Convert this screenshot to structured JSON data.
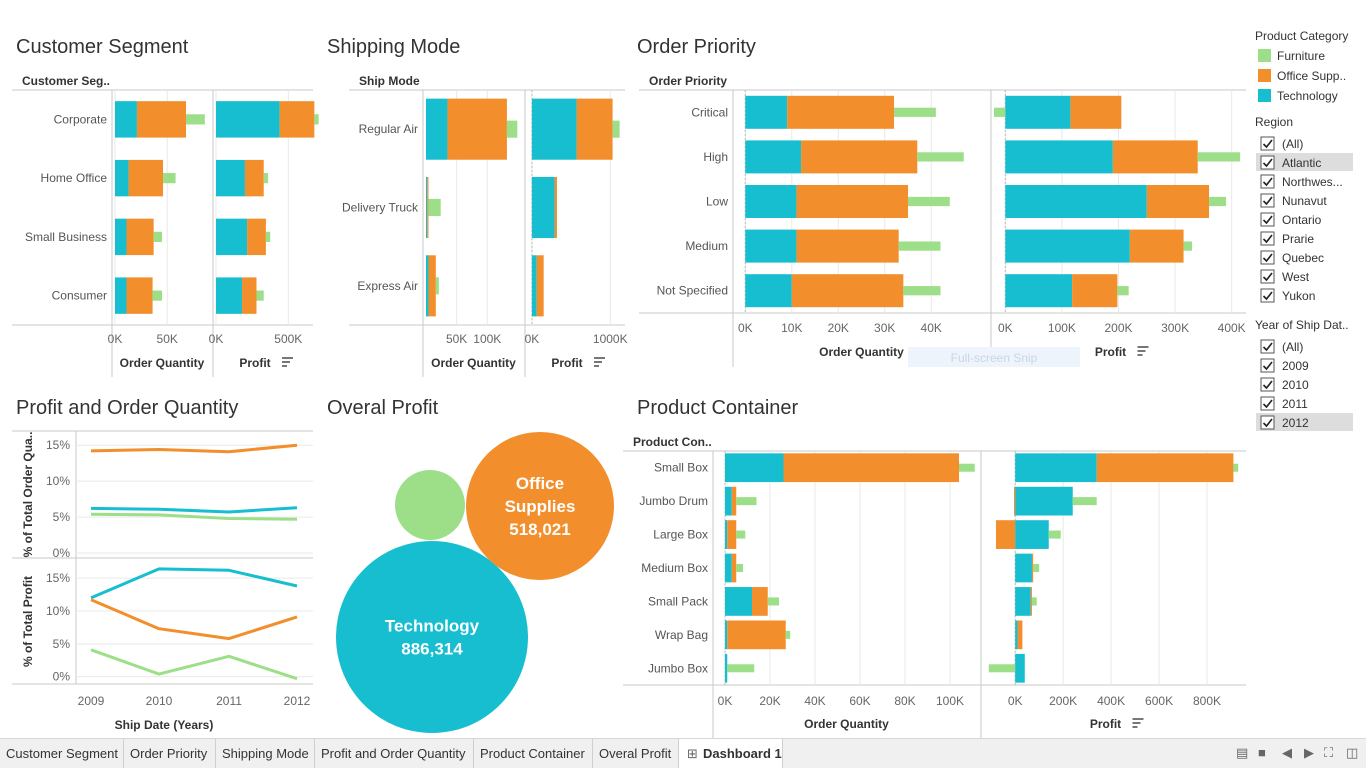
{
  "colors": {
    "Furniture": "#9ddf88",
    "Office Supplies": "#f28e2b",
    "Technology": "#17becf"
  },
  "titles": {
    "customer_segment": "Customer Segment",
    "shipping_mode": "Shipping Mode",
    "order_priority": "Order Priority",
    "profit_order_qty": "Profit and Order Quantity",
    "overal_profit": "Overal Profit",
    "product_container": "Product Container"
  },
  "legend": {
    "category_title": "Product Category",
    "categories": [
      "Furniture",
      "Office Supp..",
      "Technology"
    ],
    "region_title": "Region",
    "regions": [
      "(All)",
      "Atlantic",
      "Northwes...",
      "Nunavut",
      "Ontario",
      "Prarie",
      "Quebec",
      "West",
      "Yukon"
    ],
    "year_title": "Year of Ship Dat..",
    "years": [
      "(All)",
      "2009",
      "2010",
      "2011",
      "2012"
    ]
  },
  "watermark": "Full-screen Snip",
  "tabs": [
    "Customer Segment",
    "Order Priority",
    "Shipping Mode",
    "Profit and Order Quantity",
    "Product Container",
    "Overal Profit",
    "Dashboard 1"
  ],
  "chart_data": [
    {
      "type": "bar",
      "id": "segment",
      "title": "Customer Segment",
      "row_header": "Customer Seg..",
      "categories": [
        "Corporate",
        "Home Office",
        "Small Business",
        "Consumer"
      ],
      "panes": [
        {
          "axis_title": "Order Quantity",
          "ticks": [
            {
              "v": 0,
              "label": "0K"
            },
            {
              "v": 50000,
              "label": "50K"
            }
          ],
          "xlim": [
            0,
            90000
          ],
          "series": [
            {
              "name": "Technology",
              "values": [
                21000,
                13000,
                11000,
                11000
              ]
            },
            {
              "name": "Office Supplies",
              "values": [
                47000,
                33000,
                26000,
                25000
              ]
            },
            {
              "name": "Furniture",
              "values": [
                18000,
                12000,
                8000,
                9000
              ]
            }
          ]
        },
        {
          "axis_title": "Profit",
          "ticks": [
            {
              "v": 0,
              "label": "0K"
            },
            {
              "v": 500000,
              "label": "500K"
            }
          ],
          "xlim": [
            0,
            650000
          ],
          "series": [
            {
              "name": "Technology",
              "values": [
                440000,
                200000,
                215000,
                180000
              ]
            },
            {
              "name": "Office Supplies",
              "values": [
                240000,
                130000,
                130000,
                100000
              ]
            },
            {
              "name": "Furniture",
              "values": [
                30000,
                30000,
                30000,
                50000
              ]
            }
          ]
        }
      ]
    },
    {
      "type": "bar",
      "id": "shipmode",
      "title": "Shipping Mode",
      "row_header": "Ship Mode",
      "categories": [
        "Regular Air",
        "Delivery Truck",
        "Express Air"
      ],
      "panes": [
        {
          "axis_title": "Order Quantity",
          "ticks": [
            {
              "v": 50000,
              "label": "50K"
            },
            {
              "v": 100000,
              "label": "100K"
            }
          ],
          "xlim": [
            0,
            155000
          ],
          "series": [
            {
              "name": "Technology",
              "values": [
                35000,
                2000,
                4000
              ]
            },
            {
              "name": "Office Supplies",
              "values": [
                97000,
                2000,
                12000
              ]
            },
            {
              "name": "Furniture",
              "values": [
                17000,
                20000,
                5000
              ]
            }
          ]
        },
        {
          "axis_title": "Profit",
          "ticks": [
            {
              "v": 0,
              "label": "0K"
            },
            {
              "v": 1000000,
              "label": "1000K"
            }
          ],
          "xlim": [
            -50000,
            1150000
          ],
          "series": [
            {
              "name": "Technology",
              "values": [
                570000,
                290000,
                60000
              ]
            },
            {
              "name": "Office Supplies",
              "values": [
                460000,
                30000,
                90000
              ]
            },
            {
              "name": "Furniture",
              "values": [
                90000,
                0,
                0
              ]
            }
          ]
        }
      ]
    },
    {
      "type": "bar",
      "id": "priority",
      "title": "Order Priority",
      "row_header": "Order Priority",
      "categories": [
        "Critical",
        "High",
        "Low",
        "Medium",
        "Not Specified"
      ],
      "panes": [
        {
          "axis_title": "Order Quantity",
          "ticks": [
            {
              "v": 0,
              "label": "0K"
            },
            {
              "v": 10000,
              "label": "10K"
            },
            {
              "v": 20000,
              "label": "20K"
            },
            {
              "v": 30000,
              "label": "30K"
            },
            {
              "v": 40000,
              "label": "40K"
            }
          ],
          "xlim": [
            -2000,
            52000
          ],
          "series": [
            {
              "name": "Technology",
              "values": [
                9000,
                12000,
                11000,
                11000,
                10000
              ]
            },
            {
              "name": "Office Supplies",
              "values": [
                23000,
                25000,
                24000,
                22000,
                24000
              ]
            },
            {
              "name": "Furniture",
              "values": [
                9000,
                10000,
                9000,
                9000,
                8000
              ]
            }
          ]
        },
        {
          "axis_title": "Profit",
          "ticks": [
            {
              "v": 0,
              "label": "0K"
            },
            {
              "v": 100000,
              "label": "100K"
            },
            {
              "v": 200000,
              "label": "200K"
            },
            {
              "v": 300000,
              "label": "300K"
            },
            {
              "v": 400000,
              "label": "400K"
            }
          ],
          "xlim": [
            -20000,
            420000
          ],
          "series": [
            {
              "name": "Technology",
              "values": [
                115000,
                190000,
                250000,
                220000,
                118000
              ]
            },
            {
              "name": "Office Supplies",
              "values": [
                90000,
                150000,
                110000,
                95000,
                80000
              ]
            },
            {
              "name": "Furniture",
              "values": [
                -20000,
                75000,
                30000,
                15000,
                20000
              ]
            }
          ]
        }
      ]
    },
    {
      "type": "line",
      "id": "profitqty",
      "title": "Profit and Order Quantity",
      "x": [
        "2009",
        "2010",
        "2011",
        "2012"
      ],
      "xlabel": "Ship Date (Years)",
      "panes": [
        {
          "ylabel": "% of Total Order Qua..",
          "ylim": [
            0,
            16
          ],
          "ticks": [
            {
              "v": 0,
              "label": "0%"
            },
            {
              "v": 5,
              "label": "5%"
            },
            {
              "v": 10,
              "label": "10%"
            },
            {
              "v": 15,
              "label": "15%"
            }
          ],
          "series": [
            {
              "name": "Office Supplies",
              "values": [
                14.2,
                14.4,
                14.1,
                15.0
              ]
            },
            {
              "name": "Technology",
              "values": [
                6.2,
                6.1,
                5.7,
                6.3
              ]
            },
            {
              "name": "Furniture",
              "values": [
                5.4,
                5.3,
                4.8,
                4.7
              ]
            }
          ]
        },
        {
          "ylabel": "% of Total Profit",
          "ylim": [
            -0.5,
            17
          ],
          "ticks": [
            {
              "v": 0,
              "label": "0%"
            },
            {
              "v": 5,
              "label": "5%"
            },
            {
              "v": 10,
              "label": "10%"
            },
            {
              "v": 15,
              "label": "15%"
            }
          ],
          "series": [
            {
              "name": "Technology",
              "values": [
                12.0,
                16.4,
                16.2,
                13.8
              ]
            },
            {
              "name": "Office Supplies",
              "values": [
                11.7,
                7.3,
                5.8,
                9.1
              ]
            },
            {
              "name": "Furniture",
              "values": [
                4.1,
                0.4,
                3.1,
                -0.3
              ]
            }
          ]
        }
      ]
    },
    {
      "type": "bubble",
      "id": "bubbles",
      "title": "Overal Profit",
      "series": [
        {
          "name": "Technology",
          "label_lines": [
            "Technology",
            "886,314"
          ],
          "value": 886314
        },
        {
          "name": "Office Supplies",
          "label_lines": [
            "Office",
            "Supplies",
            "518,021"
          ],
          "value": 518021
        },
        {
          "name": "Furniture",
          "label_lines": [],
          "value": null
        }
      ]
    },
    {
      "type": "bar",
      "id": "container",
      "title": "Product Container",
      "row_header": "Product Con..",
      "categories": [
        "Small Box",
        "Jumbo Drum",
        "Large Box",
        "Medium Box",
        "Small Pack",
        "Wrap Bag",
        "Jumbo Box"
      ],
      "panes": [
        {
          "axis_title": "Order Quantity",
          "ticks": [
            {
              "v": 0,
              "label": "0K"
            },
            {
              "v": 20000,
              "label": "20K"
            },
            {
              "v": 40000,
              "label": "40K"
            },
            {
              "v": 60000,
              "label": "60K"
            },
            {
              "v": 80000,
              "label": "80K"
            },
            {
              "v": 100000,
              "label": "100K"
            }
          ],
          "xlim": [
            -4000,
            112000
          ],
          "series": [
            {
              "name": "Technology",
              "values": [
                26000,
                3000,
                1000,
                3000,
                12000,
                1000,
                1000
              ]
            },
            {
              "name": "Office Supplies",
              "values": [
                78000,
                2000,
                4000,
                2000,
                7000,
                26000,
                0
              ]
            },
            {
              "name": "Furniture",
              "values": [
                7000,
                9000,
                4000,
                3000,
                5000,
                2000,
                12000
              ]
            }
          ]
        },
        {
          "axis_title": "Profit",
          "ticks": [
            {
              "v": 0,
              "label": "0K"
            },
            {
              "v": 200000,
              "label": "200K"
            },
            {
              "v": 400000,
              "label": "400K"
            },
            {
              "v": 600000,
              "label": "600K"
            },
            {
              "v": 800000,
              "label": "800K"
            }
          ],
          "xlim": [
            -130000,
            950000
          ],
          "series": [
            {
              "name": "Technology",
              "values": [
                340000,
                240000,
                140000,
                70000,
                65000,
                10000,
                40000
              ]
            },
            {
              "name": "Office Supplies",
              "values": [
                570000,
                -5000,
                -80000,
                5000,
                5000,
                20000,
                0
              ]
            },
            {
              "name": "Furniture",
              "values": [
                20000,
                100000,
                50000,
                25000,
                20000,
                0,
                -110000
              ]
            }
          ]
        }
      ]
    }
  ]
}
